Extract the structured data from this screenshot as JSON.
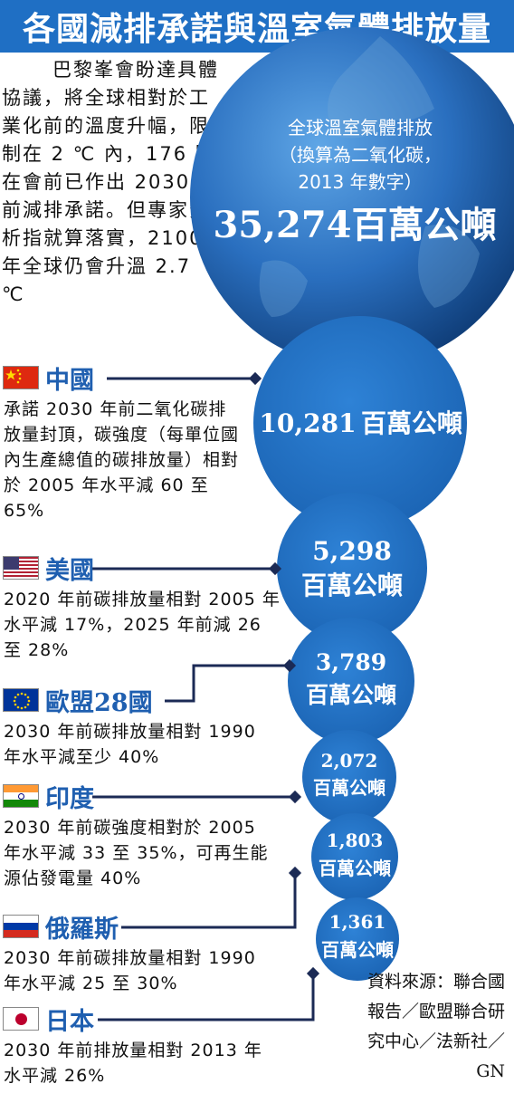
{
  "title": "各國減排承諾與溫室氣體排放量",
  "intro": "巴黎峯會盼達具體協議，將全球相對於工業化前的溫度升幅，限制在 2 ℃ 內，176 國在會前已作出 2030 年前減排承諾。但專家分析指就算落實，2100 年全球仍會升溫 2.7 ℃",
  "global": {
    "label_lines": [
      "全球溫室氣體排放",
      "（換算為二氧化碳，",
      "2013 年數字）"
    ],
    "value": "35,274百萬公噸"
  },
  "countries": [
    {
      "name": "中國",
      "flag": "china-flag",
      "desc": "承諾 2030 年前二氧化碳排放量封頂，碳強度（每單位國內生產總值的碳排放量）相對於 2005 年水平減 60 至 65%",
      "value": "10,281",
      "unit": "百萬公噸"
    },
    {
      "name": "美國",
      "flag": "usa-flag",
      "desc": "2020 年前碳排放量相對 2005 年水平減 17%，2025 年前減 26 至 28%",
      "value": "5,298",
      "unit": "百萬公噸"
    },
    {
      "name": "歐盟28國",
      "flag": "eu-flag",
      "desc": "2030 年前碳排放量相對 1990 年水平減至少 40%",
      "value": "3,789",
      "unit": "百萬公噸"
    },
    {
      "name": "印度",
      "flag": "india-flag",
      "desc": "2030 年前碳強度相對於 2005 年水平減 33 至 35%，可再生能源佔發電量 40%",
      "value": "2,072",
      "unit": "百萬公噸"
    },
    {
      "name": "俄羅斯",
      "flag": "russia-flag",
      "desc": "2030 年前碳排放量相對 1990 年水平減 25 至 30%",
      "value": "1,803",
      "unit": "百萬公噸"
    },
    {
      "name": "日本",
      "flag": "japan-flag",
      "desc": "2030 年前排放量相對 2013 年水平減 26%",
      "value": "1,361",
      "unit": "百萬公噸"
    }
  ],
  "source": "資料來源：聯合國報告／歐盟聯合研究中心／法新社／GN",
  "colors": {
    "title_bg": "#1f6fc4",
    "bubble": "#1e6fc0",
    "globe_dark": "#0f3d78",
    "name_blue": "#1f5fb0",
    "line": "#1b2a55"
  }
}
